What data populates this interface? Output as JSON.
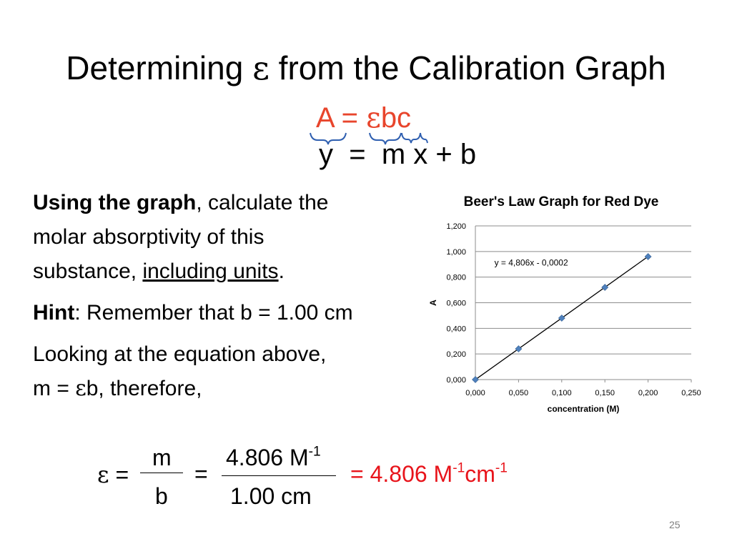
{
  "slide": {
    "title_prefix": "Determining ",
    "title_symbol": "ε",
    "title_suffix": " from the Calibration Graph",
    "eq_top": {
      "a": "A =",
      "eps": "ε",
      "bc": "bc"
    },
    "eq_bottom": "y  =  m x + b",
    "paragraph1": {
      "bold": "Using the graph",
      "rest_line1": ", calculate the",
      "line2": "molar absorptivity of this",
      "line3_pre": "substance, ",
      "line3_under": "including units",
      "line3_post": "."
    },
    "hint": {
      "bold": "Hint",
      "rest": ": Remember that b = 1.00 cm"
    },
    "looking": {
      "line1": "Looking at the equation above,",
      "line2_pre": "m = ",
      "line2_eps": "ε",
      "line2_post": "b, therefore,"
    },
    "calc": {
      "eps": "ε",
      "eq": "=",
      "m": "m",
      "b": "b",
      "eq2": "=",
      "num_value": "4.806 M",
      "num_exp": "-1",
      "den": "1.00 cm",
      "result_prefix": "= 4.806 M",
      "result_exp1": "-1",
      "result_mid": "cm",
      "result_exp2": "-1"
    },
    "page_number": "25"
  },
  "chart_data": {
    "type": "scatter",
    "title": "Beer's Law Graph for Red Dye",
    "xlabel": "concentration (M)",
    "ylabel": "A",
    "xlim": [
      0,
      0.25
    ],
    "ylim": [
      0,
      1.2
    ],
    "x_ticks": [
      "0,000",
      "0,050",
      "0,100",
      "0,150",
      "0,200",
      "0,250"
    ],
    "y_ticks": [
      "0,000",
      "0,200",
      "0,400",
      "0,600",
      "0,800",
      "1,000",
      "1,200"
    ],
    "points": [
      {
        "x": 0.0,
        "y": 0.0
      },
      {
        "x": 0.05,
        "y": 0.24
      },
      {
        "x": 0.1,
        "y": 0.48
      },
      {
        "x": 0.15,
        "y": 0.72
      },
      {
        "x": 0.2,
        "y": 0.96
      }
    ],
    "trendline": {
      "slope": 4.806,
      "intercept": -0.0002,
      "label": "y = 4,806x - 0,0002"
    },
    "grid": "horizontal",
    "marker_color": "#4f81bd",
    "line_color": "#000000"
  }
}
